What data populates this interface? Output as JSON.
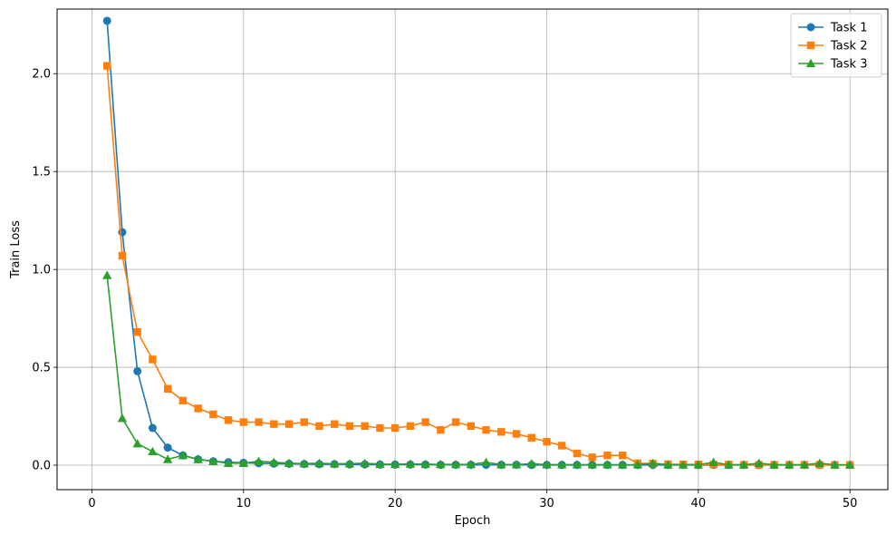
{
  "chart_data": {
    "type": "line",
    "title": "",
    "xlabel": "Epoch",
    "ylabel": "Train Loss",
    "xlim": [
      -2.3,
      52.5
    ],
    "ylim": [
      -0.125,
      2.33
    ],
    "xticks": [
      0,
      10,
      20,
      30,
      40,
      50
    ],
    "xtick_labels": [
      "0",
      "10",
      "20",
      "30",
      "40",
      "50"
    ],
    "yticks": [
      0.0,
      0.5,
      1.0,
      1.5,
      2.0
    ],
    "ytick_labels": [
      "0.0",
      "0.5",
      "1.0",
      "1.5",
      "2.0"
    ],
    "grid": true,
    "legend_position": "top-right",
    "x": [
      1,
      2,
      3,
      4,
      5,
      6,
      7,
      8,
      9,
      10,
      11,
      12,
      13,
      14,
      15,
      16,
      17,
      18,
      19,
      20,
      21,
      22,
      23,
      24,
      25,
      26,
      27,
      28,
      29,
      30,
      31,
      32,
      33,
      34,
      35,
      36,
      37,
      38,
      39,
      40,
      41,
      42,
      43,
      44,
      45,
      46,
      47,
      48,
      49,
      50
    ],
    "series": [
      {
        "name": "Task 1",
        "color": "#1f77b4",
        "marker": "circle",
        "values": [
          2.27,
          1.19,
          0.48,
          0.19,
          0.09,
          0.05,
          0.03,
          0.02,
          0.015,
          0.012,
          0.01,
          0.008,
          0.007,
          0.006,
          0.005,
          0.005,
          0.004,
          0.004,
          0.003,
          0.003,
          0.003,
          0.003,
          0.002,
          0.002,
          0.002,
          0.002,
          0.002,
          0.002,
          0.001,
          0.001,
          0.001,
          0.001,
          0.001,
          0.001,
          0.001,
          0.001,
          0.001,
          0.001,
          0.001,
          0.001,
          0.001,
          0.001,
          0.001,
          0.001,
          0.001,
          0.001,
          0.001,
          0.001,
          0.001,
          0.001
        ]
      },
      {
        "name": "Task 2",
        "color": "#ff7f0e",
        "marker": "square",
        "values": [
          2.04,
          1.07,
          0.68,
          0.54,
          0.39,
          0.33,
          0.29,
          0.26,
          0.23,
          0.22,
          0.22,
          0.21,
          0.21,
          0.22,
          0.2,
          0.21,
          0.2,
          0.2,
          0.19,
          0.19,
          0.2,
          0.22,
          0.18,
          0.22,
          0.2,
          0.18,
          0.17,
          0.16,
          0.14,
          0.12,
          0.1,
          0.06,
          0.04,
          0.05,
          0.05,
          0.01,
          0.008,
          0.005,
          0.004,
          0.004,
          0.003,
          0.003,
          0.002,
          0.002,
          0.002,
          0.002,
          0.002,
          0.002,
          0.001,
          0.001
        ]
      },
      {
        "name": "Task 3",
        "color": "#2ca02c",
        "marker": "triangle",
        "values": [
          0.97,
          0.24,
          0.11,
          0.07,
          0.03,
          0.05,
          0.03,
          0.02,
          0.01,
          0.01,
          0.02,
          0.015,
          0.01,
          0.008,
          0.01,
          0.007,
          0.008,
          0.01,
          0.005,
          0.005,
          0.006,
          0.005,
          0.004,
          0.004,
          0.004,
          0.015,
          0.003,
          0.003,
          0.008,
          0.003,
          0.003,
          0.003,
          0.003,
          0.003,
          0.002,
          0.003,
          0.01,
          0.002,
          0.002,
          0.002,
          0.015,
          0.002,
          0.002,
          0.01,
          0.002,
          0.002,
          0.002,
          0.01,
          0.002,
          0.002
        ]
      }
    ]
  }
}
